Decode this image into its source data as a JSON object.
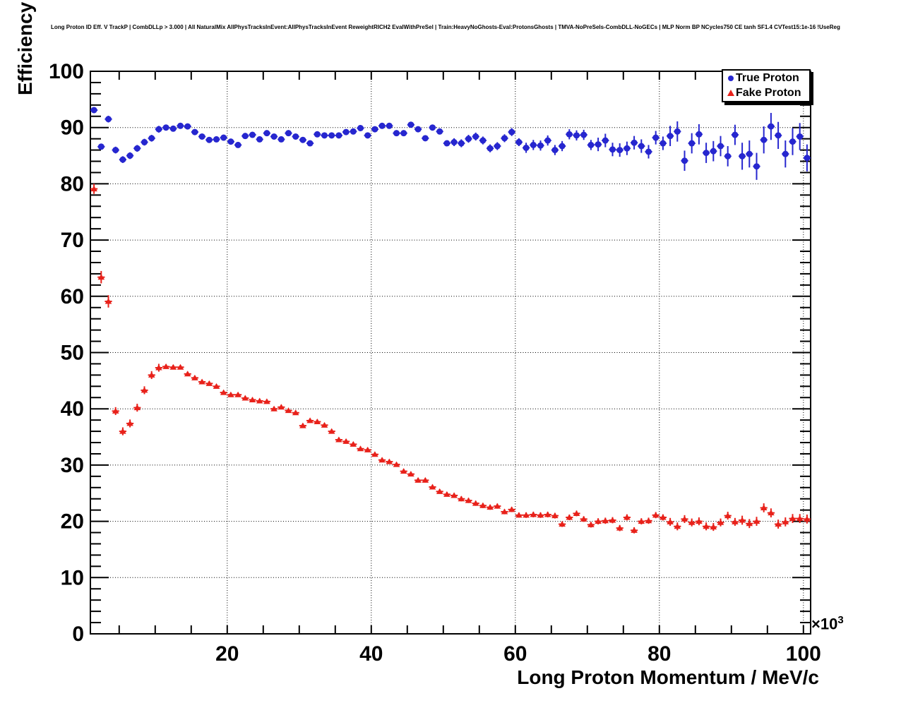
{
  "title": "Long Proton ID Eff. V TrackP | CombDLLp > 3.000 | All NaturalMix AllPhysTracksInEvent:AllPhysTracksInEvent ReweightRICH2 EvalWithPreSel | Train:HeavyNoGhosts-Eval:ProtonsGhosts | TMVA-NoPreSels-CombDLL-NoGECs | MLP Norm BP NCycles750 CE tanh SF1.4 CVTest15:1e-16 !UseReg",
  "x_power_label": {
    "base": "×10",
    "exp": "3"
  },
  "chart_data": {
    "type": "scatter",
    "title": "Long Proton ID Eff. V TrackP",
    "xlabel": "Long Proton Momentum / MeV/c",
    "ylabel": "Efficiency / %",
    "x_unit_multiplier": "×10³",
    "xlim": [
      1,
      101
    ],
    "ylim": [
      0,
      100
    ],
    "x_ticks": [
      20,
      40,
      60,
      80,
      100
    ],
    "x_minor_step": 5,
    "y_ticks": [
      0,
      10,
      20,
      30,
      40,
      50,
      60,
      70,
      80,
      90,
      100
    ],
    "y_minor_step": 2,
    "grid": "dotted",
    "legend_position": "top-right",
    "xerr_halfwidth": 0.5,
    "x": [
      1.5,
      2.5,
      3.5,
      4.5,
      5.5,
      6.5,
      7.5,
      8.5,
      9.5,
      10.5,
      11.5,
      12.5,
      13.5,
      14.5,
      15.5,
      16.5,
      17.5,
      18.5,
      19.5,
      20.5,
      21.5,
      22.5,
      23.5,
      24.5,
      25.5,
      26.5,
      27.5,
      28.5,
      29.5,
      30.5,
      31.5,
      32.5,
      33.5,
      34.5,
      35.5,
      36.5,
      37.5,
      38.5,
      39.5,
      40.5,
      41.5,
      42.5,
      43.5,
      44.5,
      45.5,
      46.5,
      47.5,
      48.5,
      49.5,
      50.5,
      51.5,
      52.5,
      53.5,
      54.5,
      55.5,
      56.5,
      57.5,
      58.5,
      59.5,
      60.5,
      61.5,
      62.5,
      63.5,
      64.5,
      65.5,
      66.5,
      67.5,
      68.5,
      69.5,
      70.5,
      71.5,
      72.5,
      73.5,
      74.5,
      75.5,
      76.5,
      77.5,
      78.5,
      79.5,
      80.5,
      81.5,
      82.5,
      83.5,
      84.5,
      85.5,
      86.5,
      87.5,
      88.5,
      89.5,
      90.5,
      91.5,
      92.5,
      93.5,
      94.5,
      95.5,
      96.5,
      97.5,
      98.5,
      99.5,
      100.5
    ],
    "series": [
      {
        "name": "True Proton",
        "marker": "circle",
        "color": "#2626cf",
        "values": [
          93.1,
          86.6,
          91.5,
          86.0,
          84.3,
          85.0,
          86.3,
          87.4,
          88.1,
          89.7,
          90.0,
          89.8,
          90.3,
          90.2,
          89.2,
          88.4,
          87.8,
          87.9,
          88.2,
          87.5,
          86.9,
          88.5,
          88.7,
          87.9,
          89.0,
          88.4,
          87.9,
          89.0,
          88.4,
          87.8,
          87.2,
          88.8,
          88.6,
          88.6,
          88.6,
          89.2,
          89.3,
          89.9,
          88.6,
          89.7,
          90.3,
          90.3,
          89.0,
          89.0,
          90.5,
          89.7,
          88.1,
          90.0,
          89.3,
          87.2,
          87.4,
          87.2,
          88.0,
          88.4,
          87.7,
          86.3,
          86.7,
          88.1,
          89.2,
          87.4,
          86.4,
          86.9,
          86.8,
          87.7,
          86.0,
          86.7,
          88.8,
          88.6,
          88.7,
          86.9,
          87.0,
          87.7,
          86.1,
          86.0,
          86.3,
          87.3,
          86.7,
          85.7,
          88.2,
          87.2,
          88.5,
          89.3,
          84.1,
          87.2,
          88.8,
          85.5,
          85.8,
          86.7,
          84.9,
          88.7,
          84.9,
          85.3,
          83.1,
          87.8,
          90.2,
          88.6,
          85.3,
          87.5,
          88.4,
          84.6
        ],
        "yerr": [
          0.5,
          0.5,
          0.6,
          0.6,
          0.6,
          0.6,
          0.6,
          0.6,
          0.6,
          0.6,
          0.4,
          0.4,
          0.4,
          0.4,
          0.4,
          0.4,
          0.4,
          0.4,
          0.4,
          0.4,
          0.4,
          0.4,
          0.4,
          0.4,
          0.4,
          0.4,
          0.4,
          0.4,
          0.4,
          0.4,
          0.5,
          0.5,
          0.5,
          0.5,
          0.5,
          0.5,
          0.5,
          0.5,
          0.5,
          0.5,
          0.5,
          0.5,
          0.5,
          0.5,
          0.5,
          0.5,
          0.5,
          0.5,
          0.5,
          0.5,
          0.7,
          0.7,
          0.7,
          0.7,
          0.7,
          0.7,
          0.7,
          0.7,
          0.7,
          0.7,
          0.9,
          0.9,
          0.9,
          0.9,
          0.9,
          0.9,
          0.9,
          0.9,
          0.9,
          0.9,
          1.2,
          1.2,
          1.2,
          1.2,
          1.2,
          1.2,
          1.2,
          1.2,
          1.2,
          1.2,
          1.8,
          1.8,
          1.8,
          1.8,
          1.8,
          1.8,
          1.8,
          1.8,
          1.8,
          1.8,
          2.4,
          2.4,
          2.4,
          2.4,
          2.4,
          2.4,
          2.4,
          2.4,
          2.4,
          2.4
        ]
      },
      {
        "name": "Fake Proton",
        "marker": "triangle",
        "color": "#e8211a",
        "values": [
          79.1,
          63.4,
          59.1,
          39.6,
          36.0,
          37.4,
          40.2,
          43.3,
          46.0,
          47.3,
          47.5,
          47.4,
          47.4,
          46.2,
          45.5,
          44.8,
          44.5,
          44.0,
          42.9,
          42.5,
          42.5,
          41.9,
          41.6,
          41.4,
          41.3,
          40.0,
          40.3,
          39.7,
          39.3,
          37.0,
          37.9,
          37.7,
          37.1,
          36.0,
          34.5,
          34.2,
          33.7,
          32.9,
          32.7,
          31.9,
          30.9,
          30.6,
          30.1,
          28.9,
          28.4,
          27.3,
          27.3,
          26.1,
          25.3,
          24.8,
          24.6,
          24.0,
          23.7,
          23.2,
          22.8,
          22.5,
          22.7,
          21.7,
          22.1,
          21.1,
          21.1,
          21.2,
          21.1,
          21.2,
          21.0,
          19.5,
          20.7,
          21.4,
          20.4,
          19.4,
          20.0,
          20.1,
          20.2,
          18.8,
          20.7,
          18.4,
          20.0,
          20.1,
          21.1,
          20.7,
          19.9,
          19.1,
          20.4,
          19.8,
          20.0,
          19.1,
          19.0,
          19.8,
          21.0,
          19.9,
          20.2,
          19.6,
          20.0,
          22.4,
          21.5,
          19.5,
          19.9,
          20.5,
          20.5,
          20.4
        ],
        "yerr": [
          0.9,
          1.1,
          1.1,
          0.7,
          0.7,
          0.7,
          0.7,
          0.7,
          0.7,
          0.7,
          0.4,
          0.4,
          0.4,
          0.4,
          0.4,
          0.4,
          0.4,
          0.4,
          0.4,
          0.4,
          0.4,
          0.4,
          0.4,
          0.4,
          0.4,
          0.4,
          0.4,
          0.4,
          0.4,
          0.4,
          0.4,
          0.4,
          0.4,
          0.4,
          0.4,
          0.4,
          0.4,
          0.4,
          0.4,
          0.4,
          0.4,
          0.4,
          0.4,
          0.4,
          0.4,
          0.4,
          0.4,
          0.4,
          0.4,
          0.4,
          0.45,
          0.45,
          0.45,
          0.45,
          0.45,
          0.45,
          0.45,
          0.45,
          0.45,
          0.45,
          0.5,
          0.5,
          0.5,
          0.5,
          0.5,
          0.5,
          0.5,
          0.5,
          0.5,
          0.5,
          0.55,
          0.55,
          0.55,
          0.55,
          0.55,
          0.55,
          0.55,
          0.55,
          0.55,
          0.55,
          0.7,
          0.7,
          0.7,
          0.7,
          0.7,
          0.7,
          0.7,
          0.7,
          0.7,
          0.7,
          0.8,
          0.8,
          0.8,
          0.8,
          0.8,
          0.8,
          0.8,
          0.8,
          0.8,
          0.8
        ]
      }
    ]
  }
}
